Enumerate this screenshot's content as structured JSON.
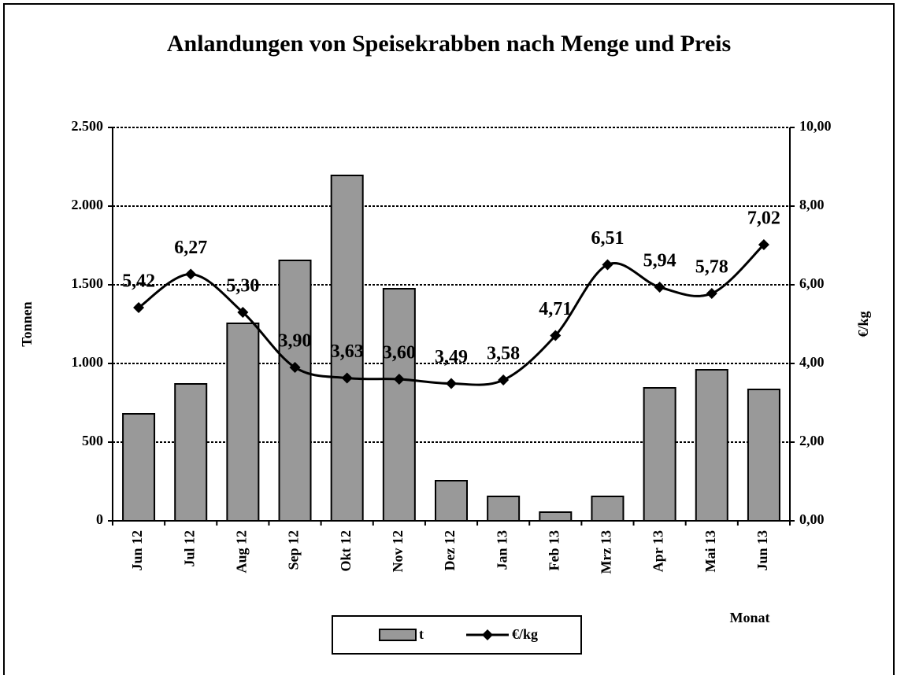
{
  "chart_data": {
    "type": "bar-line",
    "title": "Anlandungen von Speisekrabben nach Menge und Preis",
    "y_label": "Tonnen",
    "y2_label": "€/kg",
    "x_label": "Monat",
    "categories": [
      "Jun 12",
      "Jul 12",
      "Aug 12",
      "Sep 12",
      "Okt 12",
      "Nov 12",
      "Dez 12",
      "Jan 13",
      "Feb 13",
      "Mrz 13",
      "Apr 13",
      "Mai 13",
      "Jun 13"
    ],
    "series": [
      {
        "name": "t",
        "color": "#999999",
        "type": "bar",
        "values": [
          680,
          870,
          1255,
          1655,
          2195,
          1475,
          255,
          155,
          55,
          155,
          845,
          960,
          835
        ]
      },
      {
        "name": "€/kg",
        "color": "#000000",
        "type": "line",
        "axis": "y2",
        "values": [
          5.42,
          6.27,
          5.3,
          3.9,
          3.63,
          3.6,
          3.49,
          3.58,
          4.71,
          6.51,
          5.94,
          5.78,
          7.02
        ],
        "value_labels": [
          "5,42",
          "6,27",
          "5,30",
          "3,90",
          "3,63",
          "3,60",
          "3,49",
          "3,58",
          "4,71",
          "6,51",
          "5,94",
          "5,78",
          "7,02"
        ]
      }
    ],
    "ylim": [
      0,
      2500
    ],
    "yticks": [
      0,
      500,
      {
        "value": 1000,
        "label": "1.000"
      },
      {
        "value": 1500,
        "label": "1.500"
      },
      {
        "value": 2000,
        "label": "2.000"
      },
      {
        "value": 2500,
        "label": "2.500"
      }
    ],
    "y2lim": [
      0,
      10
    ],
    "y2ticks": [
      {
        "value": 0,
        "label": "0,00"
      },
      {
        "value": 2,
        "label": "2,00"
      },
      {
        "value": 4,
        "label": "4,00"
      },
      {
        "value": 6,
        "label": "6,00"
      },
      {
        "value": 8,
        "label": "8,00"
      },
      {
        "value": 10,
        "label": "10,00"
      }
    ],
    "grid": true,
    "legend": "bottom"
  }
}
